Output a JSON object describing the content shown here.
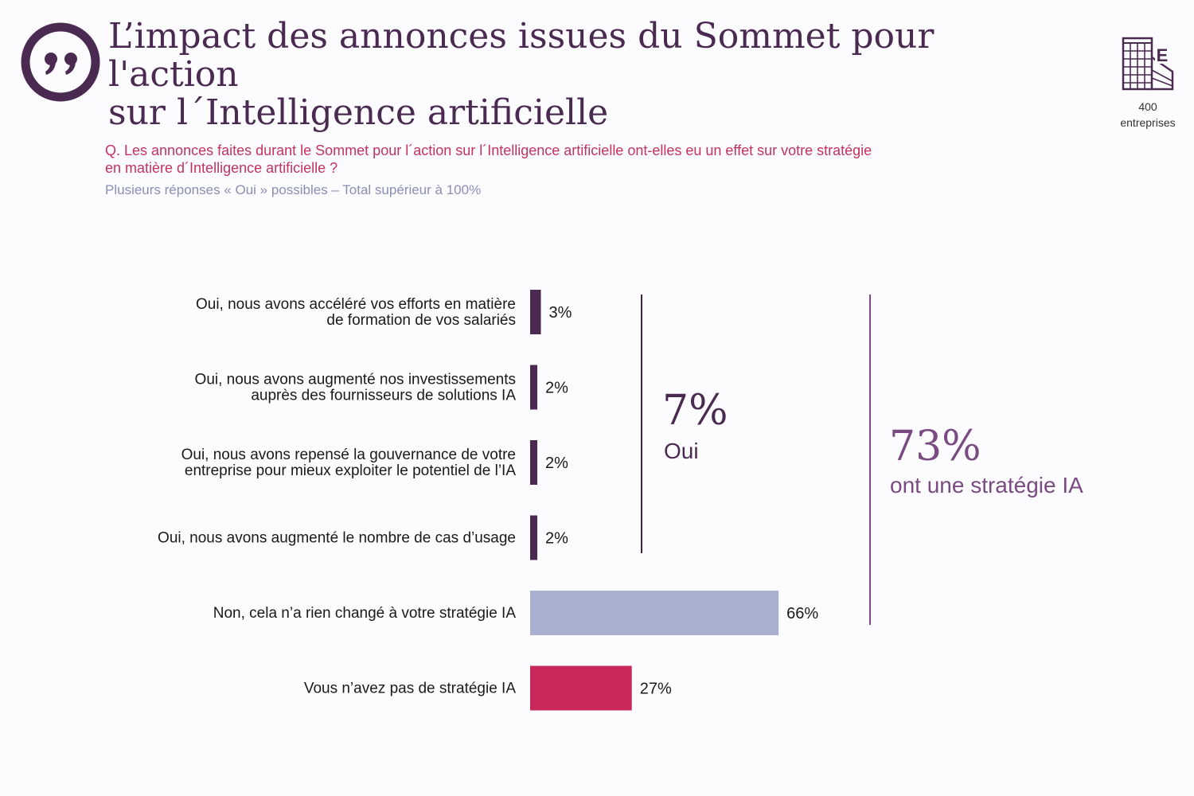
{
  "header": {
    "title_line1": "L’impact des annonces issues du Sommet pour l'action",
    "title_line2": "sur l´Intelligence artificielle"
  },
  "sample": {
    "icon": "building-icon",
    "count": "400",
    "unit": "entreprises"
  },
  "question": {
    "line1": "Q. Les annonces faites durant le Sommet pour l´action sur l´Intelligence artificielle ont-elles eu un effet sur votre stratégie",
    "line2": "en matière d´Intelligence artificielle ?",
    "note": "Plusieurs réponses « Oui » possibles – Total supérieur à 100%"
  },
  "colors": {
    "dark_purple": "#4b2a52",
    "lavender": "#a9b0cf",
    "crimson": "#c8285a",
    "accent_purple": "#7a4b82"
  },
  "groups": {
    "oui": {
      "pct": "7%",
      "label": "Oui"
    },
    "strategy": {
      "pct": "73%",
      "label": "ont une stratégie IA"
    }
  },
  "chart_data": {
    "type": "bar",
    "orientation": "horizontal",
    "xlim": [
      0,
      100
    ],
    "categories": [
      [
        "Oui, nous avons accéléré vos efforts en matière",
        "de formation de vos salariés"
      ],
      [
        "Oui, nous avons augmenté nos investissements",
        "auprès des fournisseurs de solutions IA"
      ],
      [
        "Oui, nous avons repensé la gouvernance de votre",
        "entreprise pour mieux exploiter le potentiel de l’IA"
      ],
      [
        "Oui, nous avons augmenté le nombre de cas d’usage"
      ],
      [
        "Non, cela n’a rien changé à votre stratégie IA"
      ],
      [
        "Vous n’avez pas de stratégie IA"
      ]
    ],
    "values": [
      3,
      2,
      2,
      2,
      66,
      27
    ],
    "value_labels": [
      "3%",
      "2%",
      "2%",
      "2%",
      "66%",
      "27%"
    ],
    "bar_colors": [
      "#4b2a52",
      "#4b2a52",
      "#4b2a52",
      "#4b2a52",
      "#a9b0cf",
      "#c8285a"
    ],
    "title": "",
    "xlabel": "",
    "ylabel": ""
  }
}
